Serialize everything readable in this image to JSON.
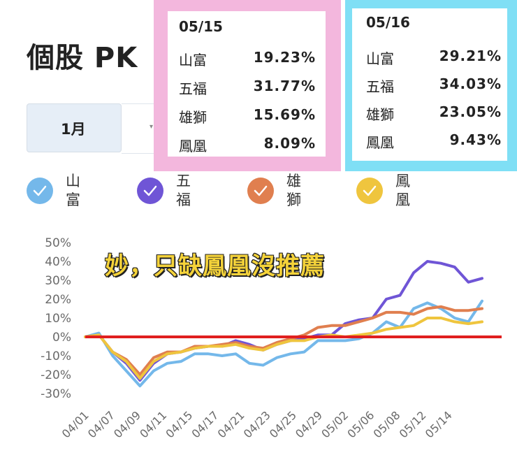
{
  "header": {
    "title": "個股 PK",
    "period": "1月"
  },
  "compare_boxes": [
    {
      "date": "05/15",
      "rows": [
        {
          "name": "山富",
          "value": "19.23%"
        },
        {
          "name": "五福",
          "value": "31.77%"
        },
        {
          "name": "雄獅",
          "value": "15.69%"
        },
        {
          "name": "鳳凰",
          "value": "8.09%"
        }
      ]
    },
    {
      "date": "05/16",
      "rows": [
        {
          "name": "山富",
          "value": "29.21%"
        },
        {
          "name": "五福",
          "value": "34.03%"
        },
        {
          "name": "雄獅",
          "value": "23.05%"
        },
        {
          "name": "鳳凰",
          "value": "9.43%"
        }
      ]
    }
  ],
  "legend": [
    {
      "name": "山富",
      "color": "#74b8ea",
      "icon": "check-icon"
    },
    {
      "name": "五福",
      "color": "#6f55d6",
      "icon": "check-icon"
    },
    {
      "name": "雄獅",
      "color": "#e07f4f",
      "icon": "check-icon"
    },
    {
      "name": "鳳凰",
      "color": "#efc53e",
      "icon": "check-icon"
    }
  ],
  "annotation": "妙，只缺鳳凰沒推薦",
  "chart_data": {
    "type": "line",
    "ylim": [
      -30,
      50
    ],
    "yticks": [
      "50%",
      "40%",
      "30%",
      "20%",
      "10%",
      "0%",
      "-10%",
      "-20%",
      "-30%"
    ],
    "ytick_values": [
      50,
      40,
      30,
      20,
      10,
      0,
      -10,
      -20,
      -30
    ],
    "xtick_labels": [
      "04/01",
      "04/07",
      "04/09",
      "04/11",
      "04/15",
      "04/17",
      "04/21",
      "04/23",
      "04/25",
      "04/29",
      "05/02",
      "05/06",
      "05/08",
      "05/12",
      "05/14"
    ],
    "zero_line_color": "#e01f1f",
    "series": [
      {
        "name": "山富",
        "color": "#74b8ea",
        "values": [
          0,
          2,
          -10,
          -18,
          -26,
          -18,
          -14,
          -13,
          -9,
          -9,
          -10,
          -9,
          -14,
          -15,
          -11,
          -9,
          -8,
          -2,
          -2,
          -2,
          -1,
          2,
          8,
          5,
          15,
          18,
          15,
          10,
          8,
          19
        ]
      },
      {
        "name": "五福",
        "color": "#6f55d6",
        "values": [
          0,
          1,
          -8,
          -14,
          -23,
          -14,
          -9,
          -8,
          -6,
          -5,
          -5,
          -2,
          -4,
          -7,
          -4,
          -2,
          -1,
          1,
          1,
          7,
          9,
          10,
          20,
          22,
          34,
          40,
          39,
          37,
          29,
          31
        ]
      },
      {
        "name": "雄獅",
        "color": "#e07f4f",
        "values": [
          0,
          1,
          -8,
          -12,
          -20,
          -11,
          -8,
          -8,
          -5,
          -5,
          -4,
          -3,
          -5,
          -6,
          -3,
          -1,
          1,
          5,
          6,
          6,
          8,
          10,
          13,
          13,
          12,
          15,
          16,
          14,
          14,
          15
        ]
      },
      {
        "name": "鳳凰",
        "color": "#efc53e",
        "values": [
          0,
          1,
          -8,
          -13,
          -22,
          -13,
          -9,
          -8,
          -6,
          -5,
          -5,
          -4,
          -6,
          -7,
          -4,
          -2,
          -2,
          0,
          1,
          0,
          1,
          2,
          4,
          5,
          6,
          10,
          10,
          8,
          7,
          8
        ]
      }
    ]
  }
}
